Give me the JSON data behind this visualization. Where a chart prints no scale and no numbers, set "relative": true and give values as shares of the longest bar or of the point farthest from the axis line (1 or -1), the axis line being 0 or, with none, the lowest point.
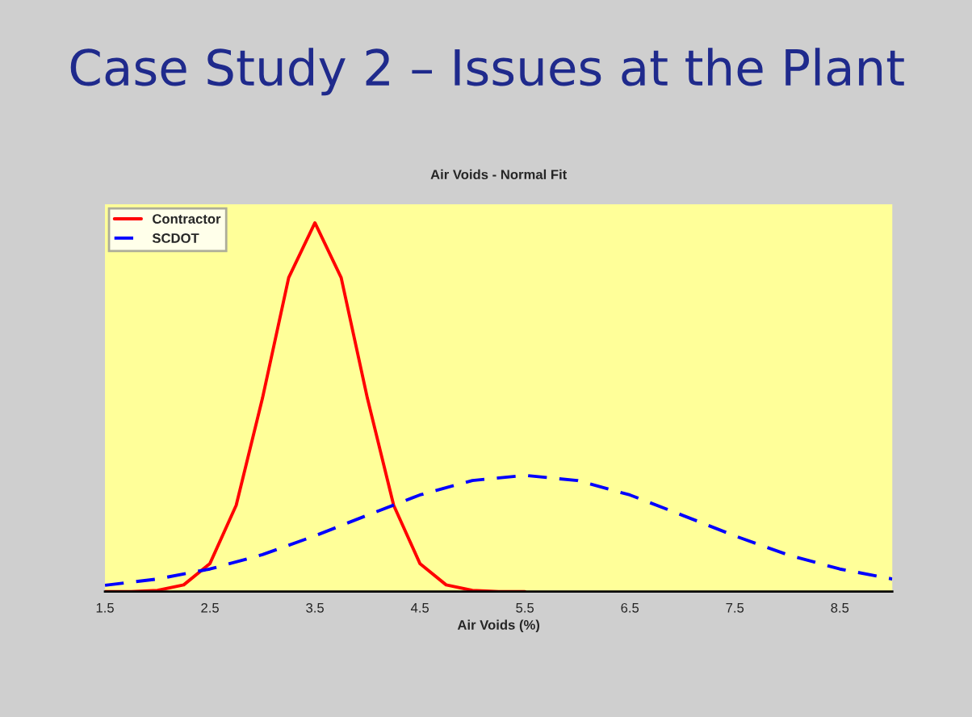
{
  "chart_data": {
    "type": "line",
    "title": "Case Study 2 – Issues at the Plant",
    "subtitle": "Air Voids - Normal Fit",
    "xlabel": "Air Voids (%)",
    "relative": true,
    "xlim": [
      1.5,
      9.0
    ],
    "xticks": [
      1.5,
      2.5,
      3.5,
      4.5,
      5.5,
      6.5,
      7.5,
      8.5
    ],
    "series": [
      {
        "name": "Contractor",
        "color": "#ff0000",
        "line_style": "solid",
        "x": [
          1.5,
          1.75,
          2.0,
          2.25,
          2.5,
          2.75,
          3.0,
          3.25,
          3.5,
          3.75,
          4.0,
          4.25,
          4.5,
          4.75,
          5.0,
          5.25,
          5.5
        ],
        "values": [
          0.0,
          0.0,
          0.003,
          0.018,
          0.076,
          0.234,
          0.524,
          0.851,
          1,
          0.851,
          0.524,
          0.234,
          0.076,
          0.018,
          0.003,
          0.0,
          0.0
        ]
      },
      {
        "name": "SCDOT",
        "color": "#0000ff",
        "line_style": "dashed",
        "x": [
          1.5,
          2.0,
          2.5,
          3.0,
          3.5,
          4.0,
          4.5,
          5.0,
          5.5,
          6.0,
          6.5,
          7.0,
          7.5,
          8.0,
          8.5,
          9.0
        ],
        "values": [
          0.017,
          0.034,
          0.061,
          0.1,
          0.151,
          0.207,
          0.262,
          0.301,
          0.315,
          0.301,
          0.262,
          0.207,
          0.151,
          0.1,
          0.061,
          0.034
        ]
      }
    ],
    "grid": false,
    "legend": "top left",
    "marker": "none"
  }
}
